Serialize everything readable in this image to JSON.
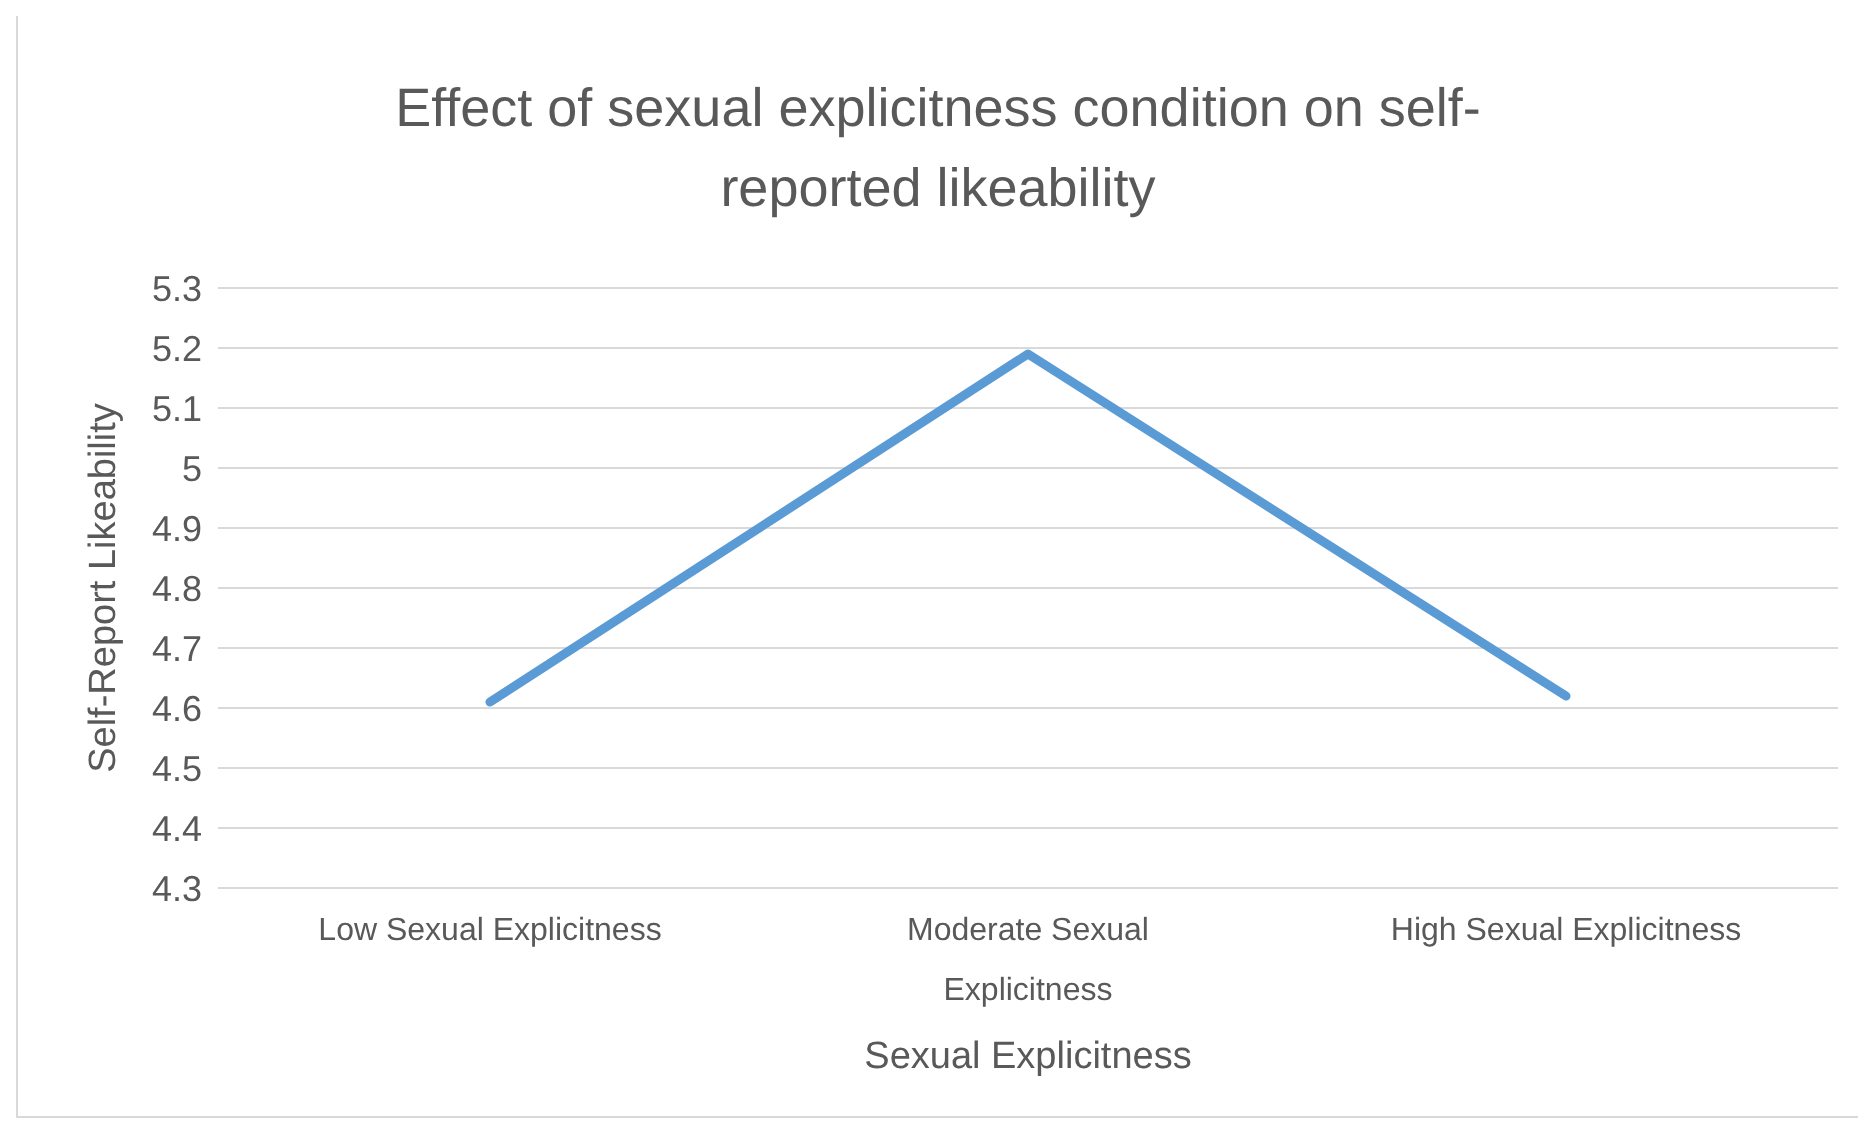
{
  "chart_data": {
    "type": "line",
    "title": "Effect of sexual explicitness condition on self-reported likeability",
    "xlabel": "Sexual Explicitness",
    "ylabel": "Self-Report Likeability",
    "categories": [
      "Low Sexual Explicitness",
      "Moderate Sexual Explicitness",
      "High Sexual Explicitness"
    ],
    "series": [
      {
        "color": "#5b9bd5",
        "values": [
          4.61,
          5.19,
          4.62
        ]
      }
    ],
    "ylim": [
      4.3,
      5.3
    ],
    "yticks": [
      4.3,
      4.4,
      4.5,
      4.6,
      4.7,
      4.8,
      4.9,
      5,
      5.1,
      5.2,
      5.3
    ],
    "grid": "y",
    "legend": false,
    "marker": "none",
    "line_style": "solid"
  }
}
